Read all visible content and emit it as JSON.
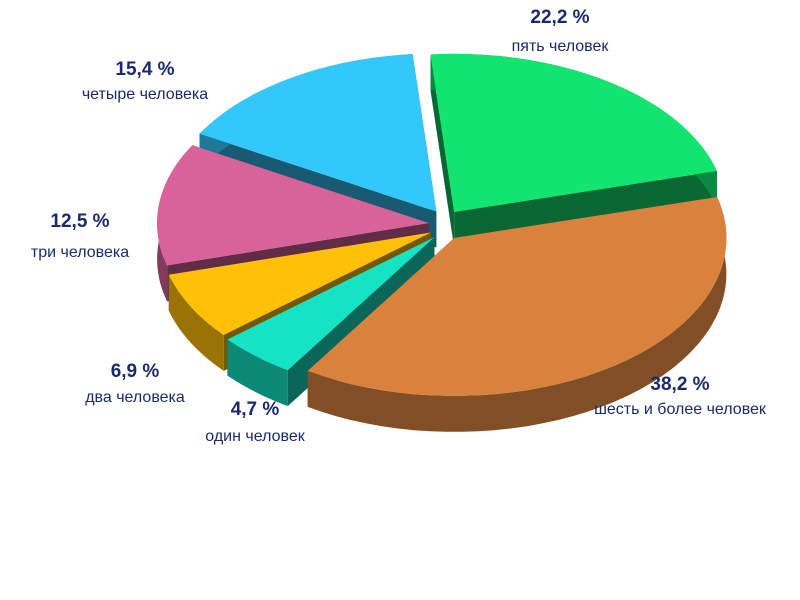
{
  "chart_data": {
    "type": "pie",
    "categories": [
      "пять человек",
      "шесть и более человек",
      "один человек",
      "два человека",
      "три человека",
      "четыре человека"
    ],
    "values": [
      22.2,
      38.2,
      4.7,
      6.9,
      12.5,
      15.4
    ],
    "value_labels": [
      "22,2 %",
      "38,2 %",
      "4,7 %",
      "6,9 %",
      "12,5 %",
      "15,4 %"
    ],
    "colors": [
      "#11e56f",
      "#d9823d",
      "#14e3c4",
      "#ffc107",
      "#d8629a",
      "#33c8fb"
    ]
  }
}
